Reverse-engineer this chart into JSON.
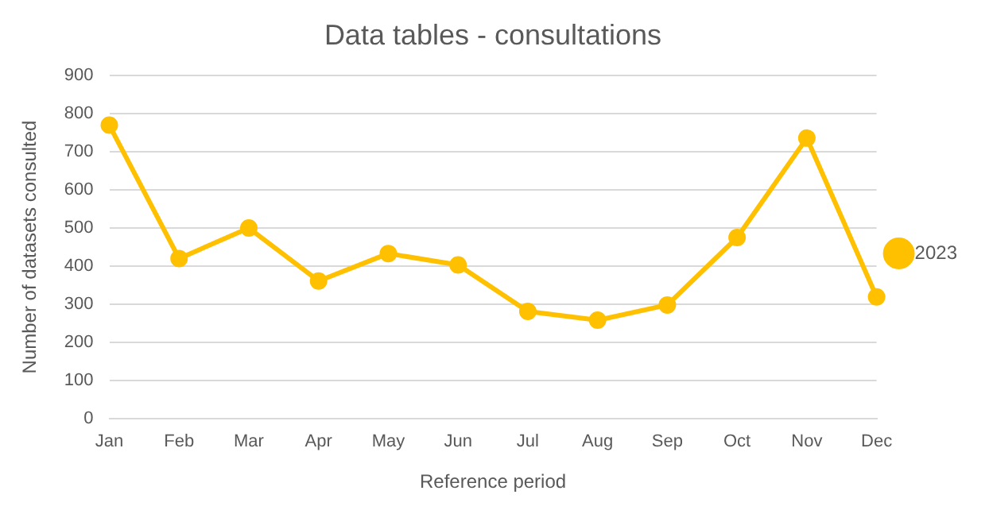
{
  "chart_data": {
    "type": "line",
    "title": "Data tables - consultations",
    "xlabel": "Reference period",
    "ylabel": "Number of datasets consulted",
    "categories": [
      "Jan",
      "Feb",
      "Mar",
      "Apr",
      "May",
      "Jun",
      "Jul",
      "Aug",
      "Sep",
      "Oct",
      "Nov",
      "Dec"
    ],
    "series": [
      {
        "name": "2023",
        "color": "#ffc000",
        "values": [
          770,
          420,
          500,
          361,
          433,
          403,
          281,
          258,
          298,
          475,
          736,
          319
        ]
      }
    ],
    "ylim": [
      0,
      900
    ],
    "yticks": [
      0,
      100,
      200,
      300,
      400,
      500,
      600,
      700,
      800,
      900
    ],
    "grid": "y",
    "legend": "right",
    "marker": "circle",
    "line_style": "solid"
  }
}
